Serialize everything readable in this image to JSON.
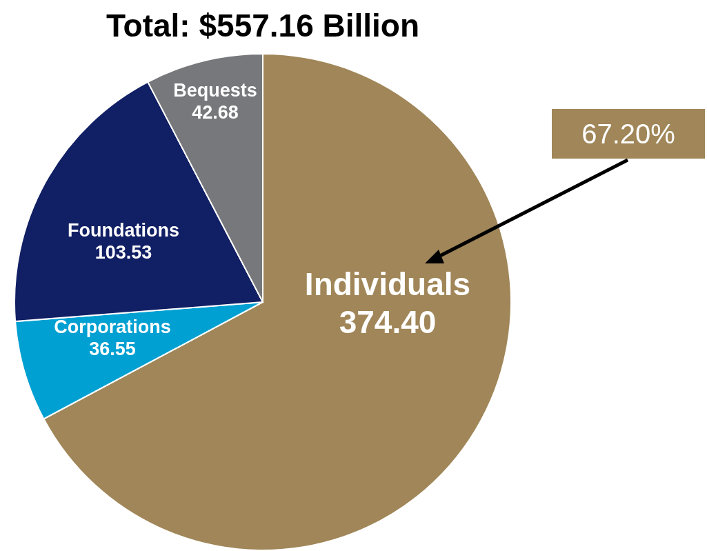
{
  "chart_data": {
    "type": "pie",
    "title": "Total: $557.16 Billion",
    "categories": [
      "Individuals",
      "Corporations",
      "Foundations",
      "Bequests"
    ],
    "values": [
      374.4,
      36.55,
      103.53,
      42.68
    ],
    "colors": [
      "#a08658",
      "#00a0d2",
      "#111f64",
      "#77787c"
    ],
    "value_labels": [
      "374.40",
      "36.55",
      "103.53",
      "42.68"
    ],
    "annotations": [
      "67.20%"
    ]
  }
}
